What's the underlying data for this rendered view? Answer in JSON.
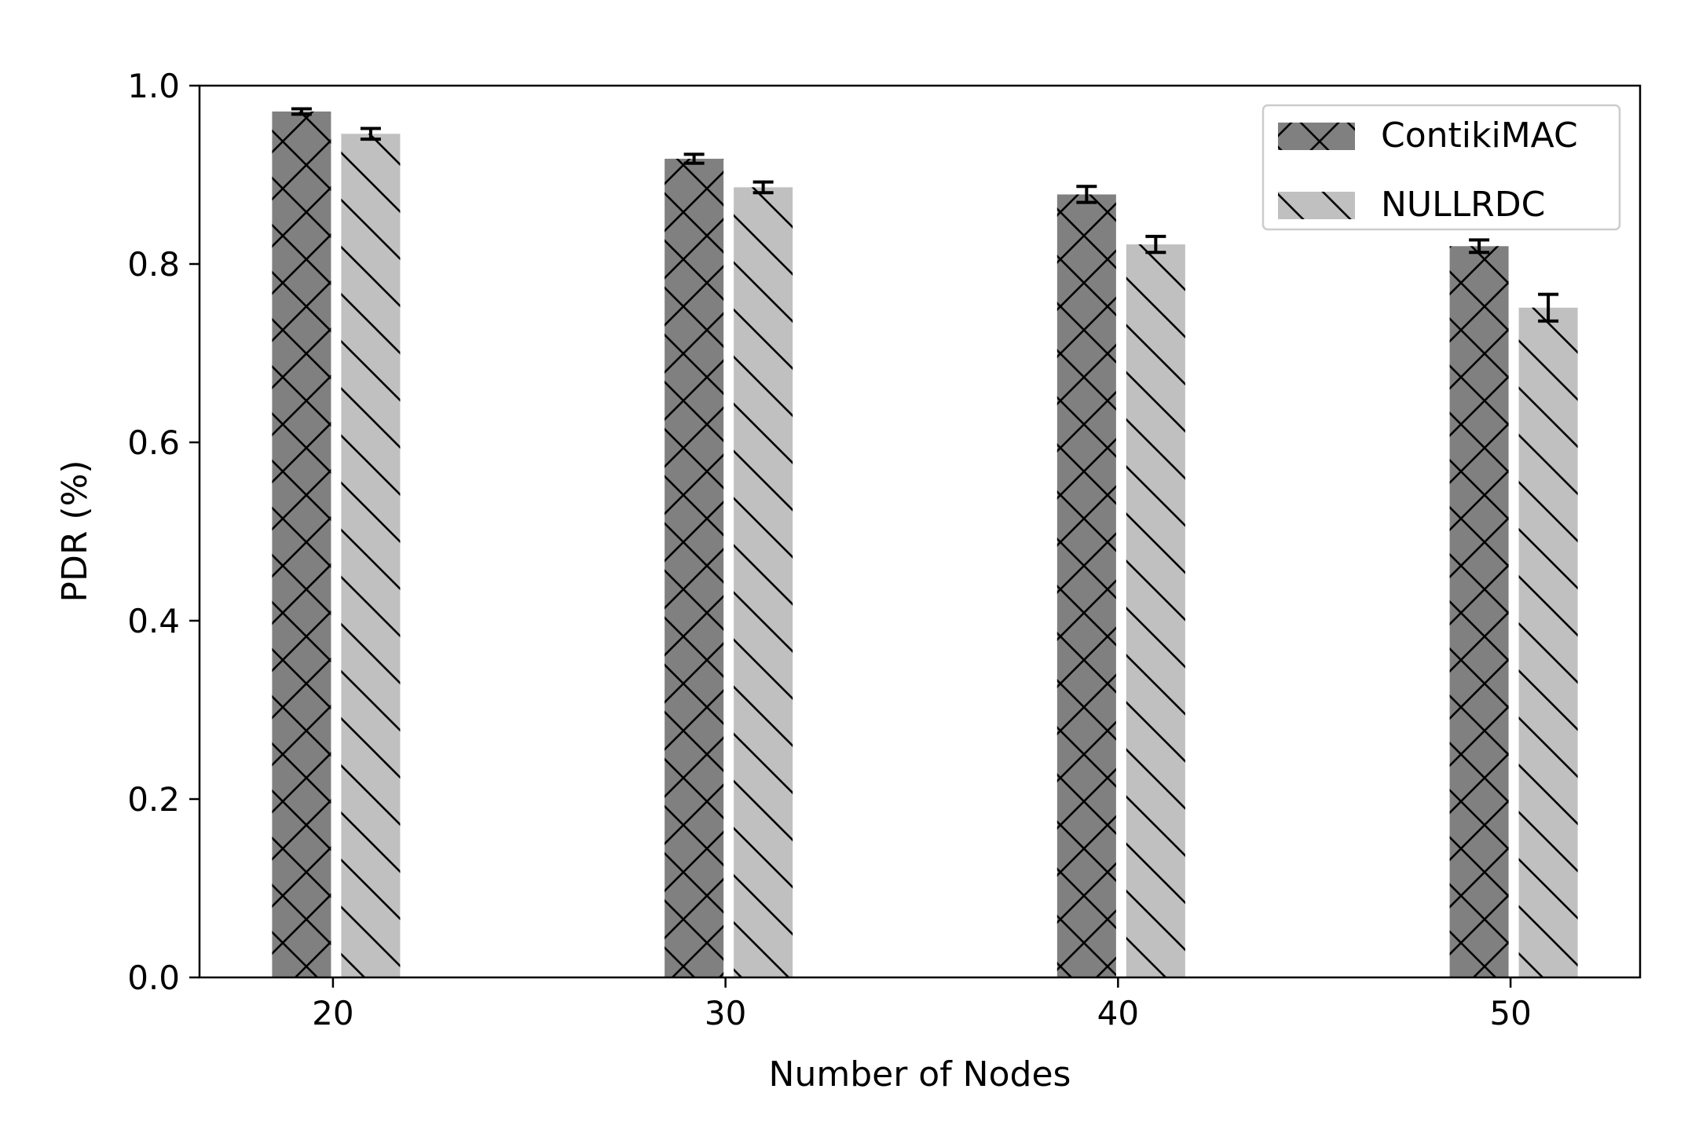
{
  "chart_data": {
    "type": "bar",
    "title": "",
    "xlabel": "Number of Nodes",
    "ylabel": "PDR (%)",
    "categories": [
      "20",
      "30",
      "40",
      "50"
    ],
    "x": [
      20,
      30,
      40,
      50
    ],
    "xlim": [
      16.6,
      53.3
    ],
    "ylim": [
      0.0,
      1.0
    ],
    "yticks": [
      "0.0",
      "0.2",
      "0.4",
      "0.6",
      "0.8",
      "1.0"
    ],
    "grid": false,
    "legend_position": "top-right",
    "series": [
      {
        "name": "ContikiMAC",
        "values": [
          0.971,
          0.918,
          0.878,
          0.82
        ],
        "errors": [
          0.003,
          0.005,
          0.009,
          0.007
        ],
        "color": "#808080",
        "hatch": "cross"
      },
      {
        "name": "NULLRDC",
        "values": [
          0.946,
          0.886,
          0.822,
          0.751
        ],
        "errors": [
          0.006,
          0.006,
          0.009,
          0.015
        ],
        "color": "#c0c0c0",
        "hatch": "backslash"
      }
    ]
  }
}
